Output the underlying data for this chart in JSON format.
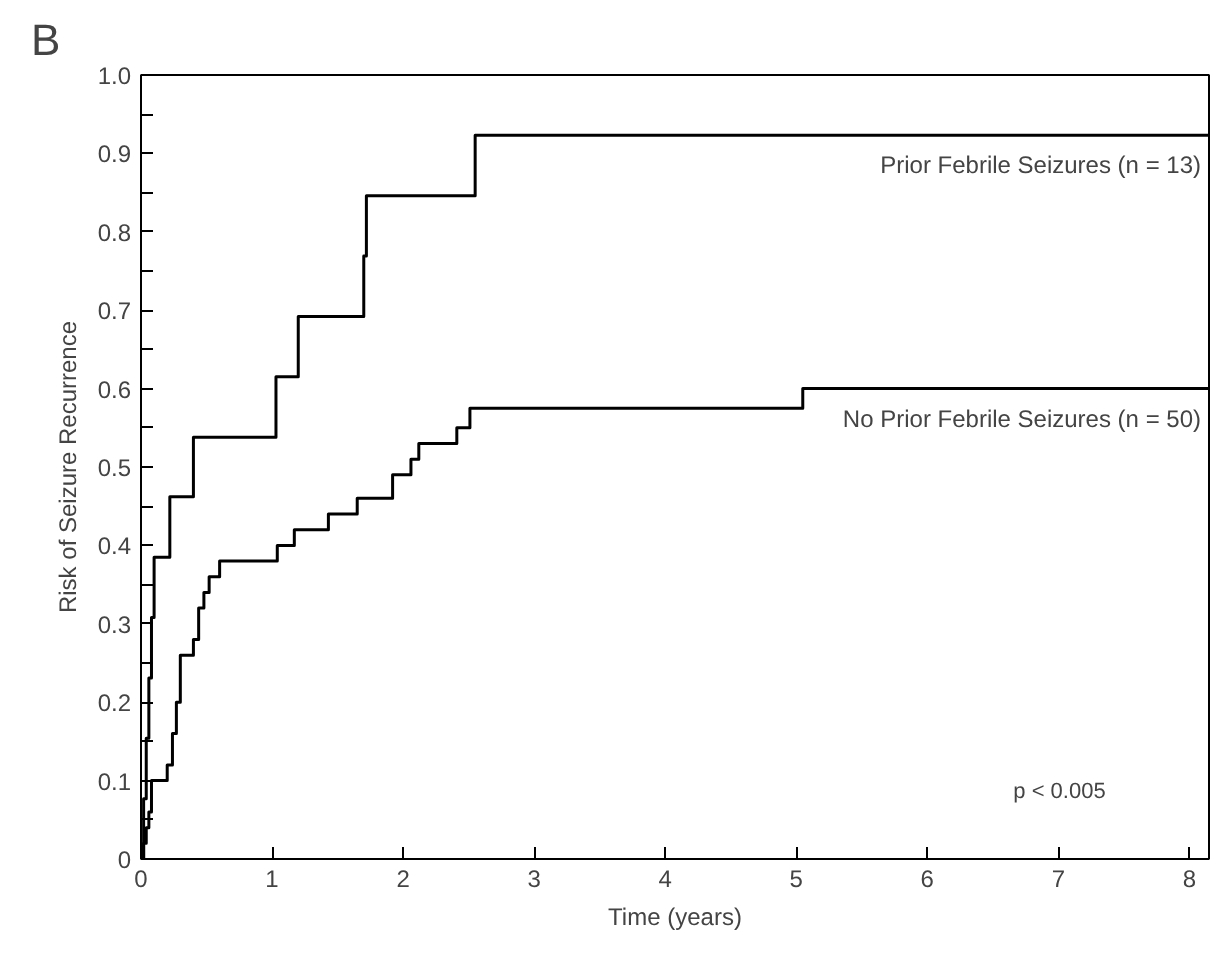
{
  "chart_data": {
    "type": "step",
    "title": "B",
    "xlabel": "Time (years)",
    "ylabel": "Risk of Seizure Recurrence",
    "xlim": [
      0,
      8.15
    ],
    "ylim": [
      0,
      1.0
    ],
    "xticks": [
      0,
      1,
      2,
      3,
      4,
      5,
      6,
      7,
      8
    ],
    "yticks": [
      0,
      {
        "value": 0.05,
        "label": null
      },
      0.1,
      {
        "value": 0.15,
        "label": null
      },
      0.2,
      {
        "value": 0.25,
        "label": null
      },
      0.3,
      {
        "value": 0.35,
        "label": null
      },
      0.4,
      {
        "value": 0.45,
        "label": null
      },
      0.5,
      {
        "value": 0.55,
        "label": null
      },
      0.6,
      {
        "value": 0.65,
        "label": null
      },
      0.7,
      {
        "value": 0.75,
        "label": null
      },
      0.8,
      {
        "value": 0.85,
        "label": null
      },
      0.9,
      {
        "value": 0.95,
        "label": null
      },
      {
        "value": 1.0,
        "label": "1.0"
      }
    ],
    "grid": false,
    "legend": false,
    "marker": "none",
    "line_style": "solid",
    "series": [
      {
        "name": "Prior Febrile Seizures (n = 13)",
        "color": "#000000",
        "x": [
          0,
          0.02,
          0.04,
          0.06,
          0.08,
          0.1,
          0.22,
          0.4,
          1.03,
          1.2,
          1.7,
          1.72,
          2.55,
          8.15
        ],
        "values": [
          0,
          0.077,
          0.154,
          0.231,
          0.308,
          0.385,
          0.462,
          0.538,
          0.615,
          0.692,
          0.769,
          0.846,
          0.923,
          0.923
        ]
      },
      {
        "name": "No Prior Febrile Seizures (n = 50)",
        "color": "#000000",
        "x": [
          0,
          0.02,
          0.04,
          0.06,
          0.08,
          0.2,
          0.24,
          0.27,
          0.3,
          0.4,
          0.44,
          0.48,
          0.52,
          0.6,
          1.04,
          1.17,
          1.43,
          1.65,
          1.92,
          2.06,
          2.12,
          2.41,
          2.51,
          5.05,
          8.15
        ],
        "values": [
          0,
          0.02,
          0.04,
          0.06,
          0.1,
          0.12,
          0.16,
          0.2,
          0.26,
          0.28,
          0.32,
          0.34,
          0.36,
          0.38,
          0.4,
          0.42,
          0.44,
          0.46,
          0.49,
          0.51,
          0.53,
          0.55,
          0.575,
          0.6,
          0.6
        ]
      }
    ],
    "annotations": [
      "p < 0.005"
    ]
  }
}
